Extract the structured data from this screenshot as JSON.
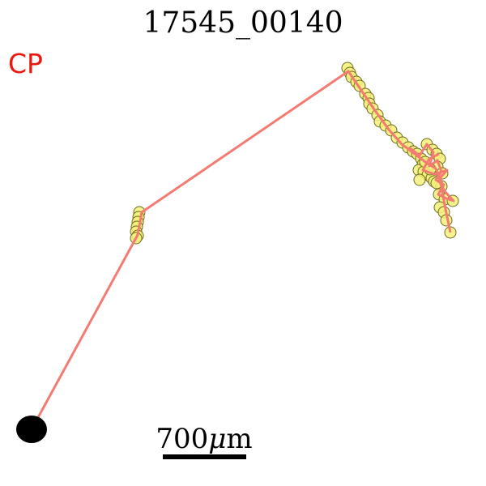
{
  "title": "17545_00140",
  "corner_label": "CP",
  "scale_bar": {
    "value": "700",
    "mu": "μ",
    "unit": "m"
  },
  "colors": {
    "background": "#ffffff",
    "path": "#f47b72",
    "point_fill": "#f5f07a",
    "point_stroke": "#6b6b1e",
    "start_marker": "#000000",
    "corner_label": "#e8190f"
  }
}
